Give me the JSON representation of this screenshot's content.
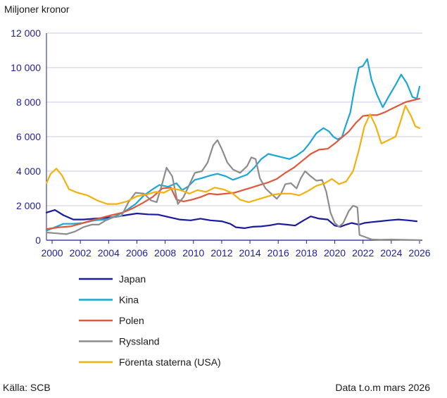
{
  "unit_label": "Miljoner kronor",
  "source": "Källa: SCB",
  "note": "Data t.o.m mars 2026",
  "colors": {
    "Japan": "#1a1aa0",
    "Kina": "#1aa7d6",
    "Polen": "#e0583a",
    "Ryssland": "#8c8c8c",
    "Förenta staterna (USA)": "#f2b10c",
    "grid": "#c8c8e6",
    "axis": "#1e1ea0"
  },
  "chart_data": {
    "type": "line",
    "title": "",
    "xlabel": "",
    "ylabel": "Miljoner kronor",
    "xlim": [
      1999.6,
      2026.2
    ],
    "ylim": [
      0,
      12000
    ],
    "x_ticks": [
      "2000",
      "2002",
      "2004",
      "2006",
      "2008",
      "2010",
      "2012",
      "2014",
      "2016",
      "2018",
      "2020",
      "2022",
      "2024",
      "2026"
    ],
    "y_ticks": [
      "0",
      "2 000",
      "4 000",
      "6 000",
      "8 000",
      "10 000",
      "12 000"
    ],
    "grid": "horizontal",
    "legend_position": "bottom-left",
    "series": [
      {
        "name": "Japan",
        "points": [
          [
            1999.6,
            1600
          ],
          [
            2000.2,
            1750
          ],
          [
            2000.8,
            1450
          ],
          [
            2001.5,
            1200
          ],
          [
            2002.2,
            1200
          ],
          [
            2003,
            1250
          ],
          [
            2003.8,
            1300
          ],
          [
            2004.5,
            1350
          ],
          [
            2005.2,
            1450
          ],
          [
            2006,
            1550
          ],
          [
            2006.8,
            1500
          ],
          [
            2007.5,
            1480
          ],
          [
            2008.2,
            1350
          ],
          [
            2009,
            1200
          ],
          [
            2009.8,
            1150
          ],
          [
            2010.5,
            1250
          ],
          [
            2011.2,
            1150
          ],
          [
            2012,
            1100
          ],
          [
            2012.6,
            950
          ],
          [
            2013,
            750
          ],
          [
            2013.6,
            700
          ],
          [
            2014.2,
            780
          ],
          [
            2014.8,
            800
          ],
          [
            2015.4,
            860
          ],
          [
            2016,
            950
          ],
          [
            2016.6,
            900
          ],
          [
            2017.2,
            850
          ],
          [
            2017.8,
            1150
          ],
          [
            2018.3,
            1380
          ],
          [
            2018.9,
            1250
          ],
          [
            2019.5,
            1200
          ],
          [
            2020,
            850
          ],
          [
            2020.4,
            780
          ],
          [
            2020.8,
            900
          ],
          [
            2021.2,
            1000
          ],
          [
            2021.7,
            900
          ],
          [
            2022.1,
            1000
          ],
          [
            2022.6,
            1050
          ],
          [
            2023.2,
            1100
          ],
          [
            2023.8,
            1150
          ],
          [
            2024.5,
            1200
          ],
          [
            2025.2,
            1150
          ],
          [
            2025.8,
            1100
          ]
        ]
      },
      {
        "name": "Kina",
        "points": [
          [
            1999.6,
            550
          ],
          [
            2000.2,
            750
          ],
          [
            2000.8,
            950
          ],
          [
            2001.5,
            950
          ],
          [
            2002.2,
            1000
          ],
          [
            2003,
            1150
          ],
          [
            2003.8,
            1200
          ],
          [
            2004.5,
            1400
          ],
          [
            2005.2,
            1700
          ],
          [
            2005.9,
            2100
          ],
          [
            2006.5,
            2600
          ],
          [
            2007.2,
            3000
          ],
          [
            2007.6,
            3200
          ],
          [
            2008.2,
            3100
          ],
          [
            2008.8,
            3300
          ],
          [
            2009.2,
            2900
          ],
          [
            2009.6,
            3100
          ],
          [
            2010.1,
            3500
          ],
          [
            2010.6,
            3600
          ],
          [
            2011.2,
            3750
          ],
          [
            2011.7,
            3850
          ],
          [
            2012.3,
            3700
          ],
          [
            2012.8,
            3500
          ],
          [
            2013.3,
            3650
          ],
          [
            2013.8,
            3800
          ],
          [
            2014.3,
            4200
          ],
          [
            2014.8,
            4700
          ],
          [
            2015.3,
            5000
          ],
          [
            2015.8,
            4900
          ],
          [
            2016.3,
            4800
          ],
          [
            2016.8,
            4700
          ],
          [
            2017.3,
            4900
          ],
          [
            2017.8,
            5200
          ],
          [
            2018.2,
            5600
          ],
          [
            2018.7,
            6200
          ],
          [
            2019.2,
            6500
          ],
          [
            2019.6,
            6300
          ],
          [
            2019.9,
            6000
          ],
          [
            2020.2,
            5850
          ],
          [
            2020.5,
            5950
          ],
          [
            2020.8,
            6700
          ],
          [
            2021.1,
            7400
          ],
          [
            2021.4,
            8800
          ],
          [
            2021.7,
            10000
          ],
          [
            2022.0,
            10100
          ],
          [
            2022.3,
            10500
          ],
          [
            2022.6,
            9300
          ],
          [
            2023.0,
            8400
          ],
          [
            2023.4,
            7700
          ],
          [
            2023.8,
            8300
          ],
          [
            2024.3,
            9000
          ],
          [
            2024.7,
            9600
          ],
          [
            2025.1,
            9100
          ],
          [
            2025.5,
            8300
          ],
          [
            2025.8,
            8200
          ],
          [
            2026.0,
            8900
          ]
        ]
      },
      {
        "name": "Polen",
        "points": [
          [
            1999.6,
            650
          ],
          [
            2000.5,
            750
          ],
          [
            2001.3,
            800
          ],
          [
            2002,
            950
          ],
          [
            2002.8,
            1150
          ],
          [
            2003.5,
            1300
          ],
          [
            2004.2,
            1450
          ],
          [
            2005,
            1600
          ],
          [
            2005.7,
            1850
          ],
          [
            2006.4,
            2150
          ],
          [
            2007.1,
            2500
          ],
          [
            2007.8,
            3000
          ],
          [
            2008.4,
            3050
          ],
          [
            2008.8,
            2350
          ],
          [
            2009.3,
            2250
          ],
          [
            2009.9,
            2350
          ],
          [
            2010.5,
            2500
          ],
          [
            2011.1,
            2700
          ],
          [
            2011.7,
            2650
          ],
          [
            2012.3,
            2700
          ],
          [
            2012.9,
            2750
          ],
          [
            2013.5,
            2900
          ],
          [
            2014.1,
            3050
          ],
          [
            2014.7,
            3200
          ],
          [
            2015.3,
            3350
          ],
          [
            2015.9,
            3550
          ],
          [
            2016.5,
            3900
          ],
          [
            2017.1,
            4200
          ],
          [
            2017.7,
            4600
          ],
          [
            2018.3,
            5000
          ],
          [
            2018.9,
            5250
          ],
          [
            2019.5,
            5300
          ],
          [
            2020,
            5600
          ],
          [
            2020.5,
            5950
          ],
          [
            2021,
            6300
          ],
          [
            2021.5,
            6800
          ],
          [
            2022,
            7200
          ],
          [
            2022.5,
            7250
          ],
          [
            2023,
            7250
          ],
          [
            2023.5,
            7400
          ],
          [
            2024,
            7600
          ],
          [
            2024.5,
            7800
          ],
          [
            2025,
            8000
          ],
          [
            2025.5,
            8100
          ],
          [
            2026,
            8200
          ]
        ]
      },
      {
        "name": "Ryssland",
        "points": [
          [
            1999.6,
            450
          ],
          [
            2000.3,
            400
          ],
          [
            2001.0,
            350
          ],
          [
            2001.6,
            500
          ],
          [
            2002.2,
            750
          ],
          [
            2002.8,
            900
          ],
          [
            2003.3,
            900
          ],
          [
            2003.8,
            1150
          ],
          [
            2004.4,
            1350
          ],
          [
            2004.9,
            1400
          ],
          [
            2005.4,
            2200
          ],
          [
            2005.9,
            2750
          ],
          [
            2006.5,
            2700
          ],
          [
            2007.0,
            2300
          ],
          [
            2007.4,
            2200
          ],
          [
            2007.8,
            3300
          ],
          [
            2008.1,
            4200
          ],
          [
            2008.5,
            3700
          ],
          [
            2008.9,
            2100
          ],
          [
            2009.3,
            2500
          ],
          [
            2009.7,
            3200
          ],
          [
            2010.1,
            3900
          ],
          [
            2010.6,
            4000
          ],
          [
            2011.0,
            4500
          ],
          [
            2011.4,
            5500
          ],
          [
            2011.7,
            5800
          ],
          [
            2012.0,
            5300
          ],
          [
            2012.4,
            4500
          ],
          [
            2012.8,
            4100
          ],
          [
            2013.3,
            3900
          ],
          [
            2013.8,
            4300
          ],
          [
            2014.1,
            4800
          ],
          [
            2014.4,
            4700
          ],
          [
            2014.7,
            3600
          ],
          [
            2015.1,
            3000
          ],
          [
            2015.5,
            2700
          ],
          [
            2015.9,
            2400
          ],
          [
            2016.2,
            2700
          ],
          [
            2016.5,
            3250
          ],
          [
            2016.9,
            3300
          ],
          [
            2017.3,
            3000
          ],
          [
            2017.6,
            3600
          ],
          [
            2017.9,
            4000
          ],
          [
            2018.3,
            3700
          ],
          [
            2018.7,
            3450
          ],
          [
            2019.1,
            3500
          ],
          [
            2019.4,
            2800
          ],
          [
            2019.7,
            1600
          ],
          [
            2020.0,
            1000
          ],
          [
            2020.3,
            780
          ],
          [
            2020.6,
            1000
          ],
          [
            2021.0,
            1700
          ],
          [
            2021.3,
            2000
          ],
          [
            2021.6,
            1900
          ],
          [
            2021.75,
            300
          ],
          [
            2022.1,
            200
          ],
          [
            2022.6,
            50
          ],
          [
            2023.2,
            30
          ],
          [
            2024.0,
            40
          ],
          [
            2025.0,
            20
          ],
          [
            2026.0,
            10
          ]
        ]
      },
      {
        "name": "Förenta staterna (USA)",
        "points": [
          [
            1999.6,
            3300
          ],
          [
            1999.9,
            3850
          ],
          [
            2000.3,
            4150
          ],
          [
            2000.7,
            3750
          ],
          [
            2001.2,
            2950
          ],
          [
            2001.8,
            2750
          ],
          [
            2002.5,
            2600
          ],
          [
            2003.2,
            2300
          ],
          [
            2003.9,
            2100
          ],
          [
            2004.6,
            2100
          ],
          [
            2005.3,
            2250
          ],
          [
            2006.0,
            2550
          ],
          [
            2006.7,
            2650
          ],
          [
            2007.3,
            2800
          ],
          [
            2007.9,
            2750
          ],
          [
            2008.5,
            3000
          ],
          [
            2009.1,
            2900
          ],
          [
            2009.7,
            2700
          ],
          [
            2010.3,
            2900
          ],
          [
            2010.9,
            2800
          ],
          [
            2011.5,
            3050
          ],
          [
            2012.1,
            2950
          ],
          [
            2012.7,
            2750
          ],
          [
            2013.3,
            2350
          ],
          [
            2013.9,
            2200
          ],
          [
            2014.5,
            2350
          ],
          [
            2015.1,
            2500
          ],
          [
            2015.7,
            2650
          ],
          [
            2016.3,
            2700
          ],
          [
            2016.9,
            2700
          ],
          [
            2017.5,
            2600
          ],
          [
            2018.1,
            2850
          ],
          [
            2018.7,
            3150
          ],
          [
            2019.3,
            3300
          ],
          [
            2019.8,
            3550
          ],
          [
            2020.3,
            3250
          ],
          [
            2020.8,
            3400
          ],
          [
            2021.3,
            4000
          ],
          [
            2021.7,
            5200
          ],
          [
            2022.1,
            6600
          ],
          [
            2022.5,
            7300
          ],
          [
            2022.9,
            6600
          ],
          [
            2023.3,
            5600
          ],
          [
            2023.8,
            5800
          ],
          [
            2024.3,
            6000
          ],
          [
            2024.7,
            7000
          ],
          [
            2025.0,
            7800
          ],
          [
            2025.4,
            7200
          ],
          [
            2025.7,
            6600
          ],
          [
            2026.0,
            6500
          ]
        ]
      }
    ]
  }
}
